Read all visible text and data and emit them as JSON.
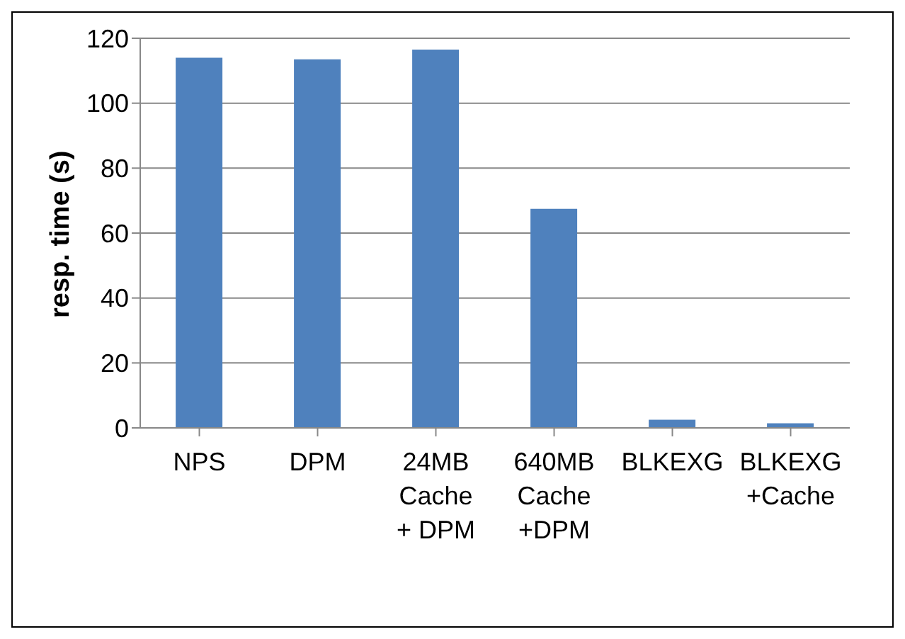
{
  "chart_data": {
    "type": "bar",
    "ylabel": "resp. time (s)",
    "categories": [
      "NPS",
      "DPM",
      "24MB\nCache\n+ DPM",
      "640MB\nCache\n+DPM",
      "BLKEXG",
      "BLKEXG\n+Cache"
    ],
    "values": [
      114,
      113.5,
      116.5,
      67.5,
      2.5,
      1.4
    ],
    "color": "#4f81bd",
    "ylim": [
      0,
      120
    ],
    "yticks": [
      0,
      20,
      40,
      60,
      80,
      100,
      120
    ],
    "grid": "y",
    "legend": false
  }
}
